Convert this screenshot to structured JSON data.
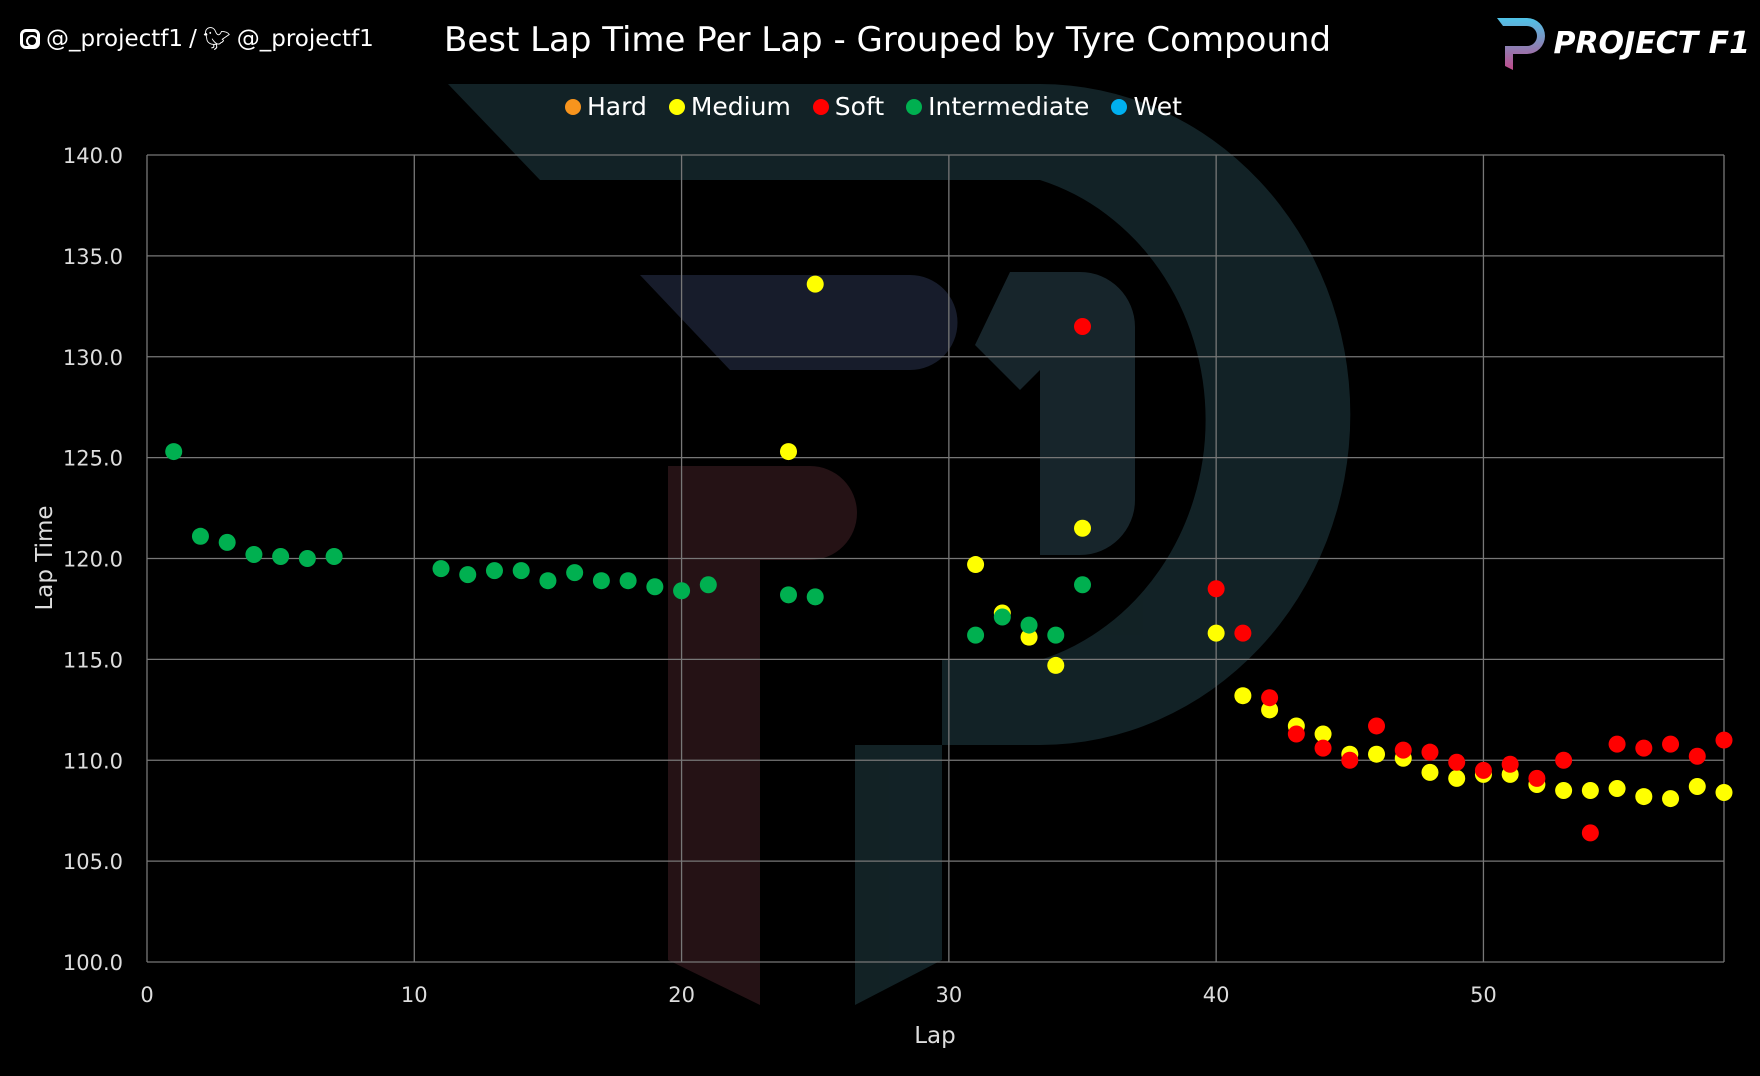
{
  "header": {
    "social_instagram": "@_projectf1",
    "separator": "/",
    "social_twitter": "@_projectf1",
    "brand": "PROJECT F1"
  },
  "chart_data": {
    "type": "scatter",
    "title": "Best Lap Time Per Lap - Grouped by Tyre Compound",
    "xlabel": "Lap",
    "ylabel": "Lap Time",
    "xlim": [
      0,
      59
    ],
    "ylim": [
      100,
      140
    ],
    "xticks": [
      0,
      10,
      20,
      30,
      40,
      50
    ],
    "yticks": [
      "100.0",
      "105.0",
      "110.0",
      "115.0",
      "120.0",
      "125.0",
      "130.0",
      "135.0",
      "140.0"
    ],
    "grid": true,
    "legend_position": "top",
    "series": [
      {
        "name": "Hard",
        "color": "#f7941d",
        "points": []
      },
      {
        "name": "Medium",
        "color": "#ffff00",
        "points": [
          [
            24,
            125.3
          ],
          [
            25,
            133.6
          ],
          [
            31,
            119.7
          ],
          [
            32,
            117.3
          ],
          [
            33,
            116.1
          ],
          [
            34,
            114.7
          ],
          [
            35,
            121.5
          ],
          [
            40,
            116.3
          ],
          [
            41,
            113.2
          ],
          [
            42,
            112.5
          ],
          [
            43,
            111.7
          ],
          [
            44,
            111.3
          ],
          [
            45,
            110.3
          ],
          [
            46,
            110.3
          ],
          [
            47,
            110.1
          ],
          [
            48,
            109.4
          ],
          [
            49,
            109.1
          ],
          [
            50,
            109.3
          ],
          [
            51,
            109.3
          ],
          [
            52,
            108.8
          ],
          [
            53,
            108.5
          ],
          [
            54,
            108.5
          ],
          [
            55,
            108.6
          ],
          [
            56,
            108.2
          ],
          [
            57,
            108.1
          ],
          [
            58,
            108.7
          ],
          [
            59,
            108.4
          ]
        ]
      },
      {
        "name": "Soft",
        "color": "#ff0000",
        "points": [
          [
            35,
            131.5
          ],
          [
            40,
            118.5
          ],
          [
            41,
            116.3
          ],
          [
            42,
            113.1
          ],
          [
            43,
            111.3
          ],
          [
            44,
            110.6
          ],
          [
            45,
            110.0
          ],
          [
            46,
            111.7
          ],
          [
            47,
            110.5
          ],
          [
            48,
            110.4
          ],
          [
            49,
            109.9
          ],
          [
            50,
            109.5
          ],
          [
            51,
            109.8
          ],
          [
            52,
            109.1
          ],
          [
            53,
            110.0
          ],
          [
            54,
            106.4
          ],
          [
            55,
            110.8
          ],
          [
            56,
            110.6
          ],
          [
            57,
            110.8
          ],
          [
            58,
            110.2
          ],
          [
            59,
            111.0
          ]
        ]
      },
      {
        "name": "Intermediate",
        "color": "#00b050",
        "points": [
          [
            1,
            125.3
          ],
          [
            2,
            121.1
          ],
          [
            3,
            120.8
          ],
          [
            4,
            120.2
          ],
          [
            5,
            120.1
          ],
          [
            6,
            120.0
          ],
          [
            7,
            120.1
          ],
          [
            11,
            119.5
          ],
          [
            12,
            119.2
          ],
          [
            13,
            119.4
          ],
          [
            14,
            119.4
          ],
          [
            15,
            118.9
          ],
          [
            16,
            119.3
          ],
          [
            17,
            118.9
          ],
          [
            18,
            118.9
          ],
          [
            19,
            118.6
          ],
          [
            20,
            118.4
          ],
          [
            21,
            118.7
          ],
          [
            24,
            118.2
          ],
          [
            25,
            118.1
          ],
          [
            31,
            116.2
          ],
          [
            32,
            117.1
          ],
          [
            33,
            116.7
          ],
          [
            34,
            116.2
          ],
          [
            35,
            118.7
          ]
        ]
      },
      {
        "name": "Wet",
        "color": "#00b0f0",
        "points": []
      }
    ]
  }
}
